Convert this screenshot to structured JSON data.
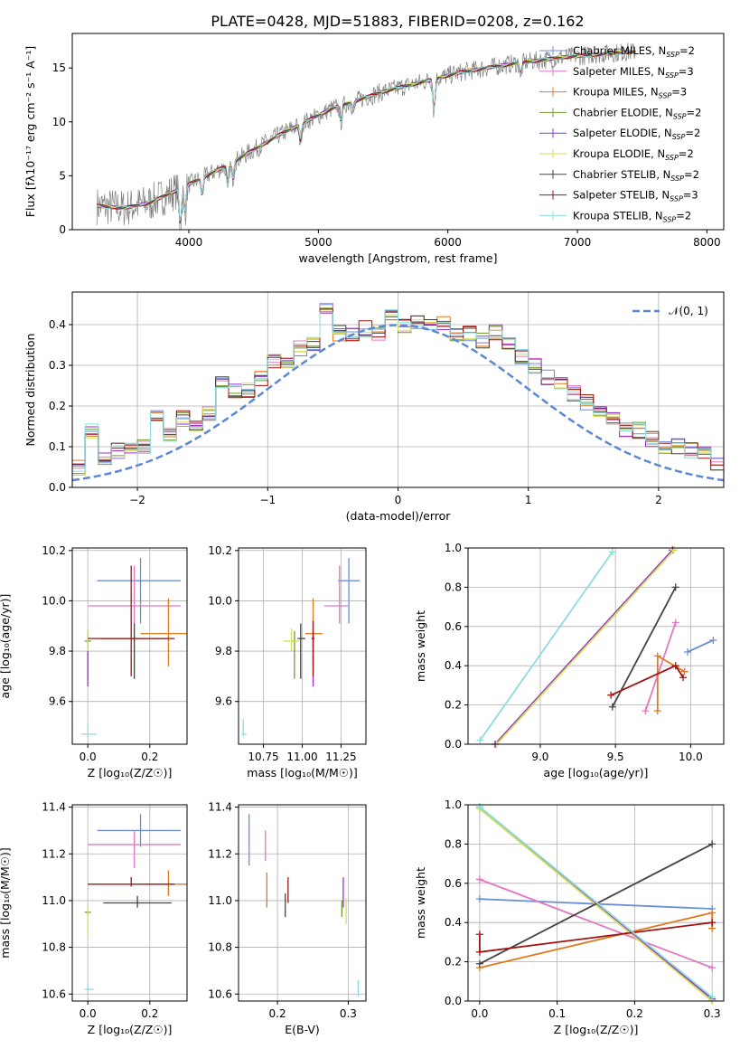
{
  "figure_title": "PLATE=0428, MJD=51883, FIBERID=0208, z=0.162",
  "colors": {
    "Chabrier MILES": "#6b8fd6",
    "Salpeter MILES": "#e377c2",
    "Kroupa MILES": "#e07a20",
    "Chabrier ELODIE": "#6f9a2f",
    "Salpeter ELODIE": "#9932cc",
    "Kroupa ELODIE": "#d4e15a",
    "Chabrier STELIB": "#444444",
    "Salpeter STELIB": "#a21414",
    "Kroupa STELIB": "#8ddbe0"
  },
  "chart_data": [
    {
      "id": "spectrum",
      "type": "line",
      "xlabel": "wavelength [Angstrom, rest frame]",
      "ylabel": "Flux [fλ10⁻¹⁷ erg cm⁻² s⁻¹ A⁻¹]",
      "xlim": [
        3100,
        8130
      ],
      "ylim": [
        0,
        18.2
      ],
      "xticks": [
        4000,
        5000,
        6000,
        7000,
        8000
      ],
      "yticks": [
        0,
        5,
        10,
        15
      ],
      "grid": false,
      "legend_position": "top-right",
      "legend": [
        {
          "name": "Chabrier MILES",
          "suffix": "=2"
        },
        {
          "name": "Salpeter MILES",
          "suffix": "=3"
        },
        {
          "name": "Kroupa MILES",
          "suffix": "=3"
        },
        {
          "name": "Chabrier ELODIE",
          "suffix": "=2"
        },
        {
          "name": "Salpeter ELODIE",
          "suffix": "=2"
        },
        {
          "name": "Kroupa ELODIE",
          "suffix": "=2"
        },
        {
          "name": "Chabrier STELIB",
          "suffix": "=2"
        },
        {
          "name": "Salpeter STELIB",
          "suffix": "=3"
        },
        {
          "name": "Kroupa STELIB",
          "suffix": "=2"
        }
      ],
      "continuum": {
        "x": [
          3300,
          3500,
          3700,
          3900,
          4100,
          4300,
          4500,
          4700,
          4900,
          5100,
          5300,
          5500,
          5700,
          5900,
          6100,
          6300,
          6500,
          6700,
          6900,
          7100,
          7300,
          7400
        ],
        "y": [
          2.2,
          2.0,
          2.5,
          3.6,
          4.8,
          6.0,
          7.4,
          8.8,
          10.0,
          11.2,
          12.0,
          12.8,
          13.4,
          14.0,
          14.6,
          15.0,
          15.4,
          15.7,
          16.0,
          16.2,
          16.4,
          16.5
        ]
      },
      "data_range": [
        3290,
        7450
      ]
    },
    {
      "id": "residual-histogram",
      "type": "histogram",
      "xlabel": "(data-model)/error",
      "ylabel": "Normed distribution",
      "xlim": [
        -2.5,
        2.5
      ],
      "ylim": [
        0,
        0.48
      ],
      "xticks": [
        -2,
        -1,
        0,
        1,
        2
      ],
      "yticks": [
        0.0,
        0.1,
        0.2,
        0.3,
        0.4
      ],
      "grid": true,
      "legend_position": "top-right",
      "reference_curve": "𝒩(0, 1)",
      "bin_width": 0.1,
      "profile": [
        0.05,
        0.14,
        0.07,
        0.09,
        0.09,
        0.1,
        0.17,
        0.13,
        0.17,
        0.15,
        0.18,
        0.26,
        0.24,
        0.24,
        0.27,
        0.31,
        0.3,
        0.34,
        0.35,
        0.44,
        0.38,
        0.38,
        0.39,
        0.38,
        0.42,
        0.4,
        0.41,
        0.4,
        0.4,
        0.38,
        0.38,
        0.36,
        0.38,
        0.35,
        0.32,
        0.3,
        0.27,
        0.25,
        0.23,
        0.21,
        0.19,
        0.17,
        0.14,
        0.14,
        0.12,
        0.1,
        0.1,
        0.09,
        0.08,
        0.06
      ]
    },
    {
      "id": "age-vs-Z",
      "type": "errorbar",
      "xlabel": "Z [log₁₀(Z/Z☉)]",
      "ylabel": "age  [log₁₀(age/yr)]",
      "xlim": [
        -0.05,
        0.32
      ],
      "ylim": [
        9.43,
        10.21
      ],
      "xticks": [
        0.0,
        0.2
      ],
      "yticks": [
        9.6,
        9.8,
        10.0,
        10.2
      ],
      "grid": true,
      "points": [
        {
          "model": "Chabrier MILES",
          "x": 0.17,
          "y": 10.08,
          "xerr": [
            0.14,
            0.13
          ],
          "yerr": [
            0.17,
            0.09
          ]
        },
        {
          "model": "Salpeter MILES",
          "x": 0.15,
          "y": 9.98,
          "xerr": [
            0.15,
            0.15
          ],
          "yerr": [
            0.07,
            0.16
          ]
        },
        {
          "model": "Kroupa MILES",
          "x": 0.26,
          "y": 9.87,
          "xerr": [
            0.09,
            0.06
          ],
          "yerr": [
            0.13,
            0.14
          ]
        },
        {
          "model": "Chabrier ELODIE",
          "x": 0.0,
          "y": 9.84,
          "xerr": [
            0.01,
            0.01
          ],
          "yerr": [
            0.15,
            0.04
          ]
        },
        {
          "model": "Salpeter ELODIE",
          "x": 0.0,
          "y": 9.84,
          "xerr": [
            0.0,
            0.0
          ],
          "yerr": [
            0.18,
            0.04
          ]
        },
        {
          "model": "Kroupa ELODIE",
          "x": 0.0,
          "y": 9.84,
          "xerr": [
            0.0,
            0.0
          ],
          "yerr": [
            0.04,
            0.05
          ]
        },
        {
          "model": "Chabrier STELIB",
          "x": 0.15,
          "y": 9.85,
          "xerr": [
            0.11,
            0.11
          ],
          "yerr": [
            0.16,
            0.06
          ]
        },
        {
          "model": "Salpeter STELIB",
          "x": 0.14,
          "y": 9.85,
          "xerr": [
            0.14,
            0.14
          ],
          "yerr": [
            0.15,
            0.29
          ]
        },
        {
          "model": "Kroupa STELIB",
          "x": 0.0,
          "y": 9.47,
          "xerr": [
            0.02,
            0.03
          ],
          "yerr": [
            0.01,
            0.04
          ]
        }
      ]
    },
    {
      "id": "age-vs-mass",
      "type": "errorbar",
      "xlabel": "mass [log₁₀(M/M☉)]",
      "ylabel": "",
      "xlim": [
        10.59,
        11.41
      ],
      "ylim": [
        9.43,
        10.21
      ],
      "xticks": [
        10.75,
        11.0,
        11.25
      ],
      "yticks": [
        9.6,
        9.8,
        10.0,
        10.2
      ],
      "grid": true,
      "points": [
        {
          "model": "Chabrier MILES",
          "x": 11.3,
          "y": 10.08,
          "xerr": [
            0.07,
            0.07
          ],
          "yerr": [
            0.17,
            0.09
          ]
        },
        {
          "model": "Salpeter MILES",
          "x": 11.24,
          "y": 9.98,
          "xerr": [
            0.1,
            0.06
          ],
          "yerr": [
            0.07,
            0.16
          ]
        },
        {
          "model": "Kroupa MILES",
          "x": 11.07,
          "y": 9.87,
          "xerr": [
            0.05,
            0.06
          ],
          "yerr": [
            0.13,
            0.14
          ]
        },
        {
          "model": "Chabrier ELODIE",
          "x": 10.95,
          "y": 9.84,
          "xerr": [
            0.01,
            0.01
          ],
          "yerr": [
            0.15,
            0.04
          ]
        },
        {
          "model": "Salpeter ELODIE",
          "x": 11.07,
          "y": 9.84,
          "xerr": [
            0.0,
            0.0
          ],
          "yerr": [
            0.18,
            0.04
          ]
        },
        {
          "model": "Kroupa ELODIE",
          "x": 10.93,
          "y": 9.84,
          "xerr": [
            0.05,
            0.05
          ],
          "yerr": [
            0.04,
            0.05
          ]
        },
        {
          "model": "Chabrier STELIB",
          "x": 10.99,
          "y": 9.85,
          "xerr": [
            0.02,
            0.03
          ],
          "yerr": [
            0.16,
            0.06
          ]
        },
        {
          "model": "Salpeter STELIB",
          "x": 11.07,
          "y": 9.85,
          "xerr": [
            0.01,
            0.01
          ],
          "yerr": [
            0.15,
            0.07
          ]
        },
        {
          "model": "Kroupa STELIB",
          "x": 10.62,
          "y": 9.47,
          "xerr": [
            0.01,
            0.02
          ],
          "yerr": [
            0.01,
            0.06
          ]
        }
      ]
    },
    {
      "id": "mass-weight-vs-age",
      "type": "line",
      "xlabel": "age  [log₁₀(age/yr)]",
      "ylabel": "mass weight",
      "xlim": [
        8.52,
        10.22
      ],
      "ylim": [
        0,
        1.0
      ],
      "xticks": [
        9.0,
        9.5,
        10.0
      ],
      "yticks": [
        0.0,
        0.2,
        0.4,
        0.6,
        0.8,
        1.0
      ],
      "grid": true,
      "series": [
        {
          "name": "Chabrier MILES",
          "points": [
            [
              9.98,
              0.47
            ],
            [
              10.15,
              0.53
            ]
          ]
        },
        {
          "name": "Salpeter MILES",
          "points": [
            [
              9.7,
              0.17
            ],
            [
              9.9,
              0.62
            ]
          ]
        },
        {
          "name": "Kroupa MILES",
          "points": [
            [
              9.78,
              0.17
            ],
            [
              9.78,
              0.45
            ],
            [
              9.96,
              0.37
            ]
          ]
        },
        {
          "name": "Chabrier ELODIE",
          "points": [
            [
              8.7,
              0.0
            ],
            [
              9.88,
              0.99
            ]
          ]
        },
        {
          "name": "Salpeter ELODIE",
          "points": [
            [
              8.7,
              0.0
            ],
            [
              9.88,
              0.99
            ]
          ]
        },
        {
          "name": "Kroupa ELODIE",
          "points": [
            [
              8.71,
              0.0
            ],
            [
              9.89,
              0.99
            ]
          ]
        },
        {
          "name": "Chabrier STELIB",
          "points": [
            [
              9.48,
              0.19
            ],
            [
              9.9,
              0.8
            ]
          ]
        },
        {
          "name": "Salpeter STELIB",
          "points": [
            [
              9.47,
              0.25
            ],
            [
              9.9,
              0.4
            ],
            [
              9.95,
              0.34
            ]
          ]
        },
        {
          "name": "Kroupa STELIB",
          "points": [
            [
              8.6,
              0.02
            ],
            [
              9.48,
              0.98
            ]
          ]
        }
      ]
    },
    {
      "id": "mass-vs-Z",
      "type": "errorbar",
      "xlabel": "Z [log₁₀(Z/Z☉)]",
      "ylabel": "mass [log₁₀(M/M☉)]",
      "xlim": [
        -0.05,
        0.32
      ],
      "ylim": [
        10.57,
        11.41
      ],
      "xticks": [
        0.0,
        0.2
      ],
      "yticks": [
        10.6,
        10.8,
        11.0,
        11.2,
        11.4
      ],
      "grid": true,
      "points": [
        {
          "model": "Chabrier MILES",
          "x": 0.17,
          "y": 11.3,
          "xerr": [
            0.14,
            0.13
          ],
          "yerr": [
            0.07,
            0.07
          ]
        },
        {
          "model": "Salpeter MILES",
          "x": 0.15,
          "y": 11.24,
          "xerr": [
            0.15,
            0.15
          ],
          "yerr": [
            0.1,
            0.06
          ]
        },
        {
          "model": "Kroupa MILES",
          "x": 0.26,
          "y": 11.07,
          "xerr": [
            0.09,
            0.06
          ],
          "yerr": [
            0.05,
            0.06
          ]
        },
        {
          "model": "Chabrier ELODIE",
          "x": 0.0,
          "y": 10.95,
          "xerr": [
            0.01,
            0.01
          ],
          "yerr": [
            0.01,
            0.01
          ]
        },
        {
          "model": "Salpeter ELODIE",
          "x": 0.0,
          "y": 11.07,
          "xerr": [
            0.0,
            0.0
          ],
          "yerr": [
            0.0,
            0.0
          ]
        },
        {
          "model": "Kroupa ELODIE",
          "x": 0.0,
          "y": 10.93,
          "xerr": [
            0.0,
            0.0
          ],
          "yerr": [
            0.08,
            0.05
          ]
        },
        {
          "model": "Chabrier STELIB",
          "x": 0.16,
          "y": 10.99,
          "xerr": [
            0.11,
            0.11
          ],
          "yerr": [
            0.02,
            0.03
          ]
        },
        {
          "model": "Salpeter STELIB",
          "x": 0.14,
          "y": 11.07,
          "xerr": [
            0.14,
            0.14
          ],
          "yerr": [
            0.01,
            0.03
          ]
        },
        {
          "model": "Kroupa STELIB",
          "x": 0.0,
          "y": 10.62,
          "xerr": [
            0.01,
            0.02
          ],
          "yerr": [
            0.01,
            0.03
          ]
        }
      ]
    },
    {
      "id": "mass-vs-ebv",
      "type": "errorbar",
      "xlabel": "E(B-V)",
      "ylabel": "",
      "xlim": [
        0.145,
        0.325
      ],
      "ylim": [
        10.57,
        11.41
      ],
      "xticks": [
        0.2,
        0.3
      ],
      "yticks": [
        10.6,
        10.8,
        11.0,
        11.2,
        11.4
      ],
      "grid": true,
      "points": [
        {
          "model": "Chabrier MILES",
          "x": 0.16,
          "y": 11.26,
          "xerr": [
            0.0,
            0.0
          ],
          "yerr": [
            0.11,
            0.11
          ]
        },
        {
          "model": "Salpeter MILES",
          "x": 0.183,
          "y": 11.23,
          "xerr": [
            0.0,
            0.0
          ],
          "yerr": [
            0.06,
            0.07
          ]
        },
        {
          "model": "Kroupa MILES",
          "x": 0.185,
          "y": 11.07,
          "xerr": [
            0.0,
            0.0
          ],
          "yerr": [
            0.1,
            0.05
          ]
        },
        {
          "model": "Chabrier ELODIE",
          "x": 0.291,
          "y": 10.96,
          "xerr": [
            0.0,
            0.0
          ],
          "yerr": [
            0.03,
            0.04
          ]
        },
        {
          "model": "Salpeter ELODIE",
          "x": 0.293,
          "y": 11.03,
          "xerr": [
            0.0,
            0.0
          ],
          "yerr": [
            0.06,
            0.07
          ]
        },
        {
          "model": "Kroupa ELODIE",
          "x": 0.297,
          "y": 10.96,
          "xerr": [
            0.0,
            0.0
          ],
          "yerr": [
            0.06,
            0.05
          ]
        },
        {
          "model": "Chabrier STELIB",
          "x": 0.211,
          "y": 10.97,
          "xerr": [
            0.0,
            0.0
          ],
          "yerr": [
            0.04,
            0.06
          ]
        },
        {
          "model": "Salpeter STELIB",
          "x": 0.215,
          "y": 11.04,
          "xerr": [
            0.0,
            0.0
          ],
          "yerr": [
            0.05,
            0.06
          ]
        },
        {
          "model": "Kroupa STELIB",
          "x": 0.314,
          "y": 10.62,
          "xerr": [
            0.0,
            0.0
          ],
          "yerr": [
            0.03,
            0.04
          ]
        }
      ]
    },
    {
      "id": "mass-weight-vs-Z",
      "type": "line",
      "xlabel": "Z [log₁₀(Z/Z☉)]",
      "ylabel": "mass weight",
      "xlim": [
        -0.015,
        0.315
      ],
      "ylim": [
        0,
        1.0
      ],
      "xticks": [
        0.0,
        0.1,
        0.2,
        0.3
      ],
      "yticks": [
        0.0,
        0.2,
        0.4,
        0.6,
        0.8,
        1.0
      ],
      "grid": true,
      "series": [
        {
          "name": "Chabrier MILES",
          "points": [
            [
              0.0,
              0.52
            ],
            [
              0.3,
              0.47
            ]
          ]
        },
        {
          "name": "Salpeter MILES",
          "points": [
            [
              0.0,
              0.62
            ],
            [
              0.3,
              0.17
            ]
          ]
        },
        {
          "name": "Kroupa MILES",
          "points": [
            [
              0.0,
              0.17
            ],
            [
              0.3,
              0.45
            ],
            [
              0.3,
              0.37
            ]
          ]
        },
        {
          "name": "Chabrier ELODIE",
          "points": [
            [
              0.0,
              0.99
            ],
            [
              0.3,
              0.01
            ]
          ]
        },
        {
          "name": "Salpeter ELODIE",
          "points": [
            [
              0.0,
              0.98
            ],
            [
              0.3,
              0.01
            ]
          ]
        },
        {
          "name": "Kroupa ELODIE",
          "points": [
            [
              0.0,
              0.98
            ],
            [
              0.3,
              0.0
            ]
          ]
        },
        {
          "name": "Chabrier STELIB",
          "points": [
            [
              0.0,
              0.19
            ],
            [
              0.3,
              0.8
            ]
          ]
        },
        {
          "name": "Salpeter STELIB",
          "points": [
            [
              0.0,
              0.34
            ],
            [
              0.0,
              0.25
            ],
            [
              0.3,
              0.4
            ]
          ]
        },
        {
          "name": "Kroupa STELIB",
          "points": [
            [
              0.0,
              0.99
            ],
            [
              0.3,
              0.02
            ]
          ]
        }
      ]
    }
  ]
}
